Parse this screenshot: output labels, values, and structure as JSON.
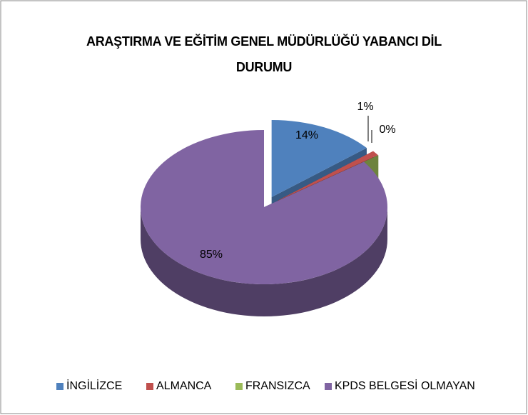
{
  "chart_data": {
    "type": "pie",
    "title": "ARAŞTIRMA VE EĞİTİM GENEL MÜDÜRLÜĞÜ YABANCI DİL DURUMU",
    "categories": [
      "İNGİLİZCE",
      "ALMANCA",
      "FRANSIZCA",
      "KPDS BELGESİ OLMAYAN"
    ],
    "values": [
      14,
      1,
      0,
      85
    ],
    "value_labels": [
      "14%",
      "1%",
      "0%",
      "85%"
    ],
    "colors": [
      "#4f81bd",
      "#c0504d",
      "#9bbb59",
      "#8064a2"
    ],
    "legend": "bottom"
  }
}
